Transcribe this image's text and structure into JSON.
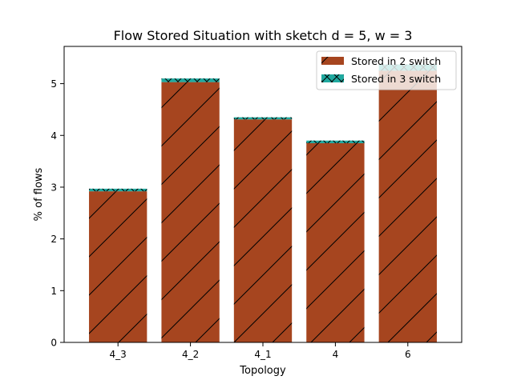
{
  "chart_data": {
    "type": "bar",
    "title": "Flow Stored Situation with sketch d = 5, w = 3",
    "xlabel": "Topology",
    "ylabel": "% of flows",
    "categories": [
      "4_3",
      "4_2",
      "4_1",
      "4",
      "6"
    ],
    "ylim": [
      0,
      5.72
    ],
    "yticks": [
      "0",
      "1",
      "2",
      "3",
      "4",
      "5"
    ],
    "stacked": true,
    "legend_position": "top-right",
    "grid": false,
    "series": [
      {
        "name": "Stored in 2 switch",
        "values": [
          2.92,
          5.03,
          4.31,
          3.85,
          5.25
        ],
        "color": "#a6451f",
        "hatch": "/"
      },
      {
        "name": "Stored in 3 switch",
        "values": [
          0.05,
          0.07,
          0.04,
          0.05,
          0.12
        ],
        "color": "#20a99f",
        "hatch": "x"
      }
    ]
  }
}
